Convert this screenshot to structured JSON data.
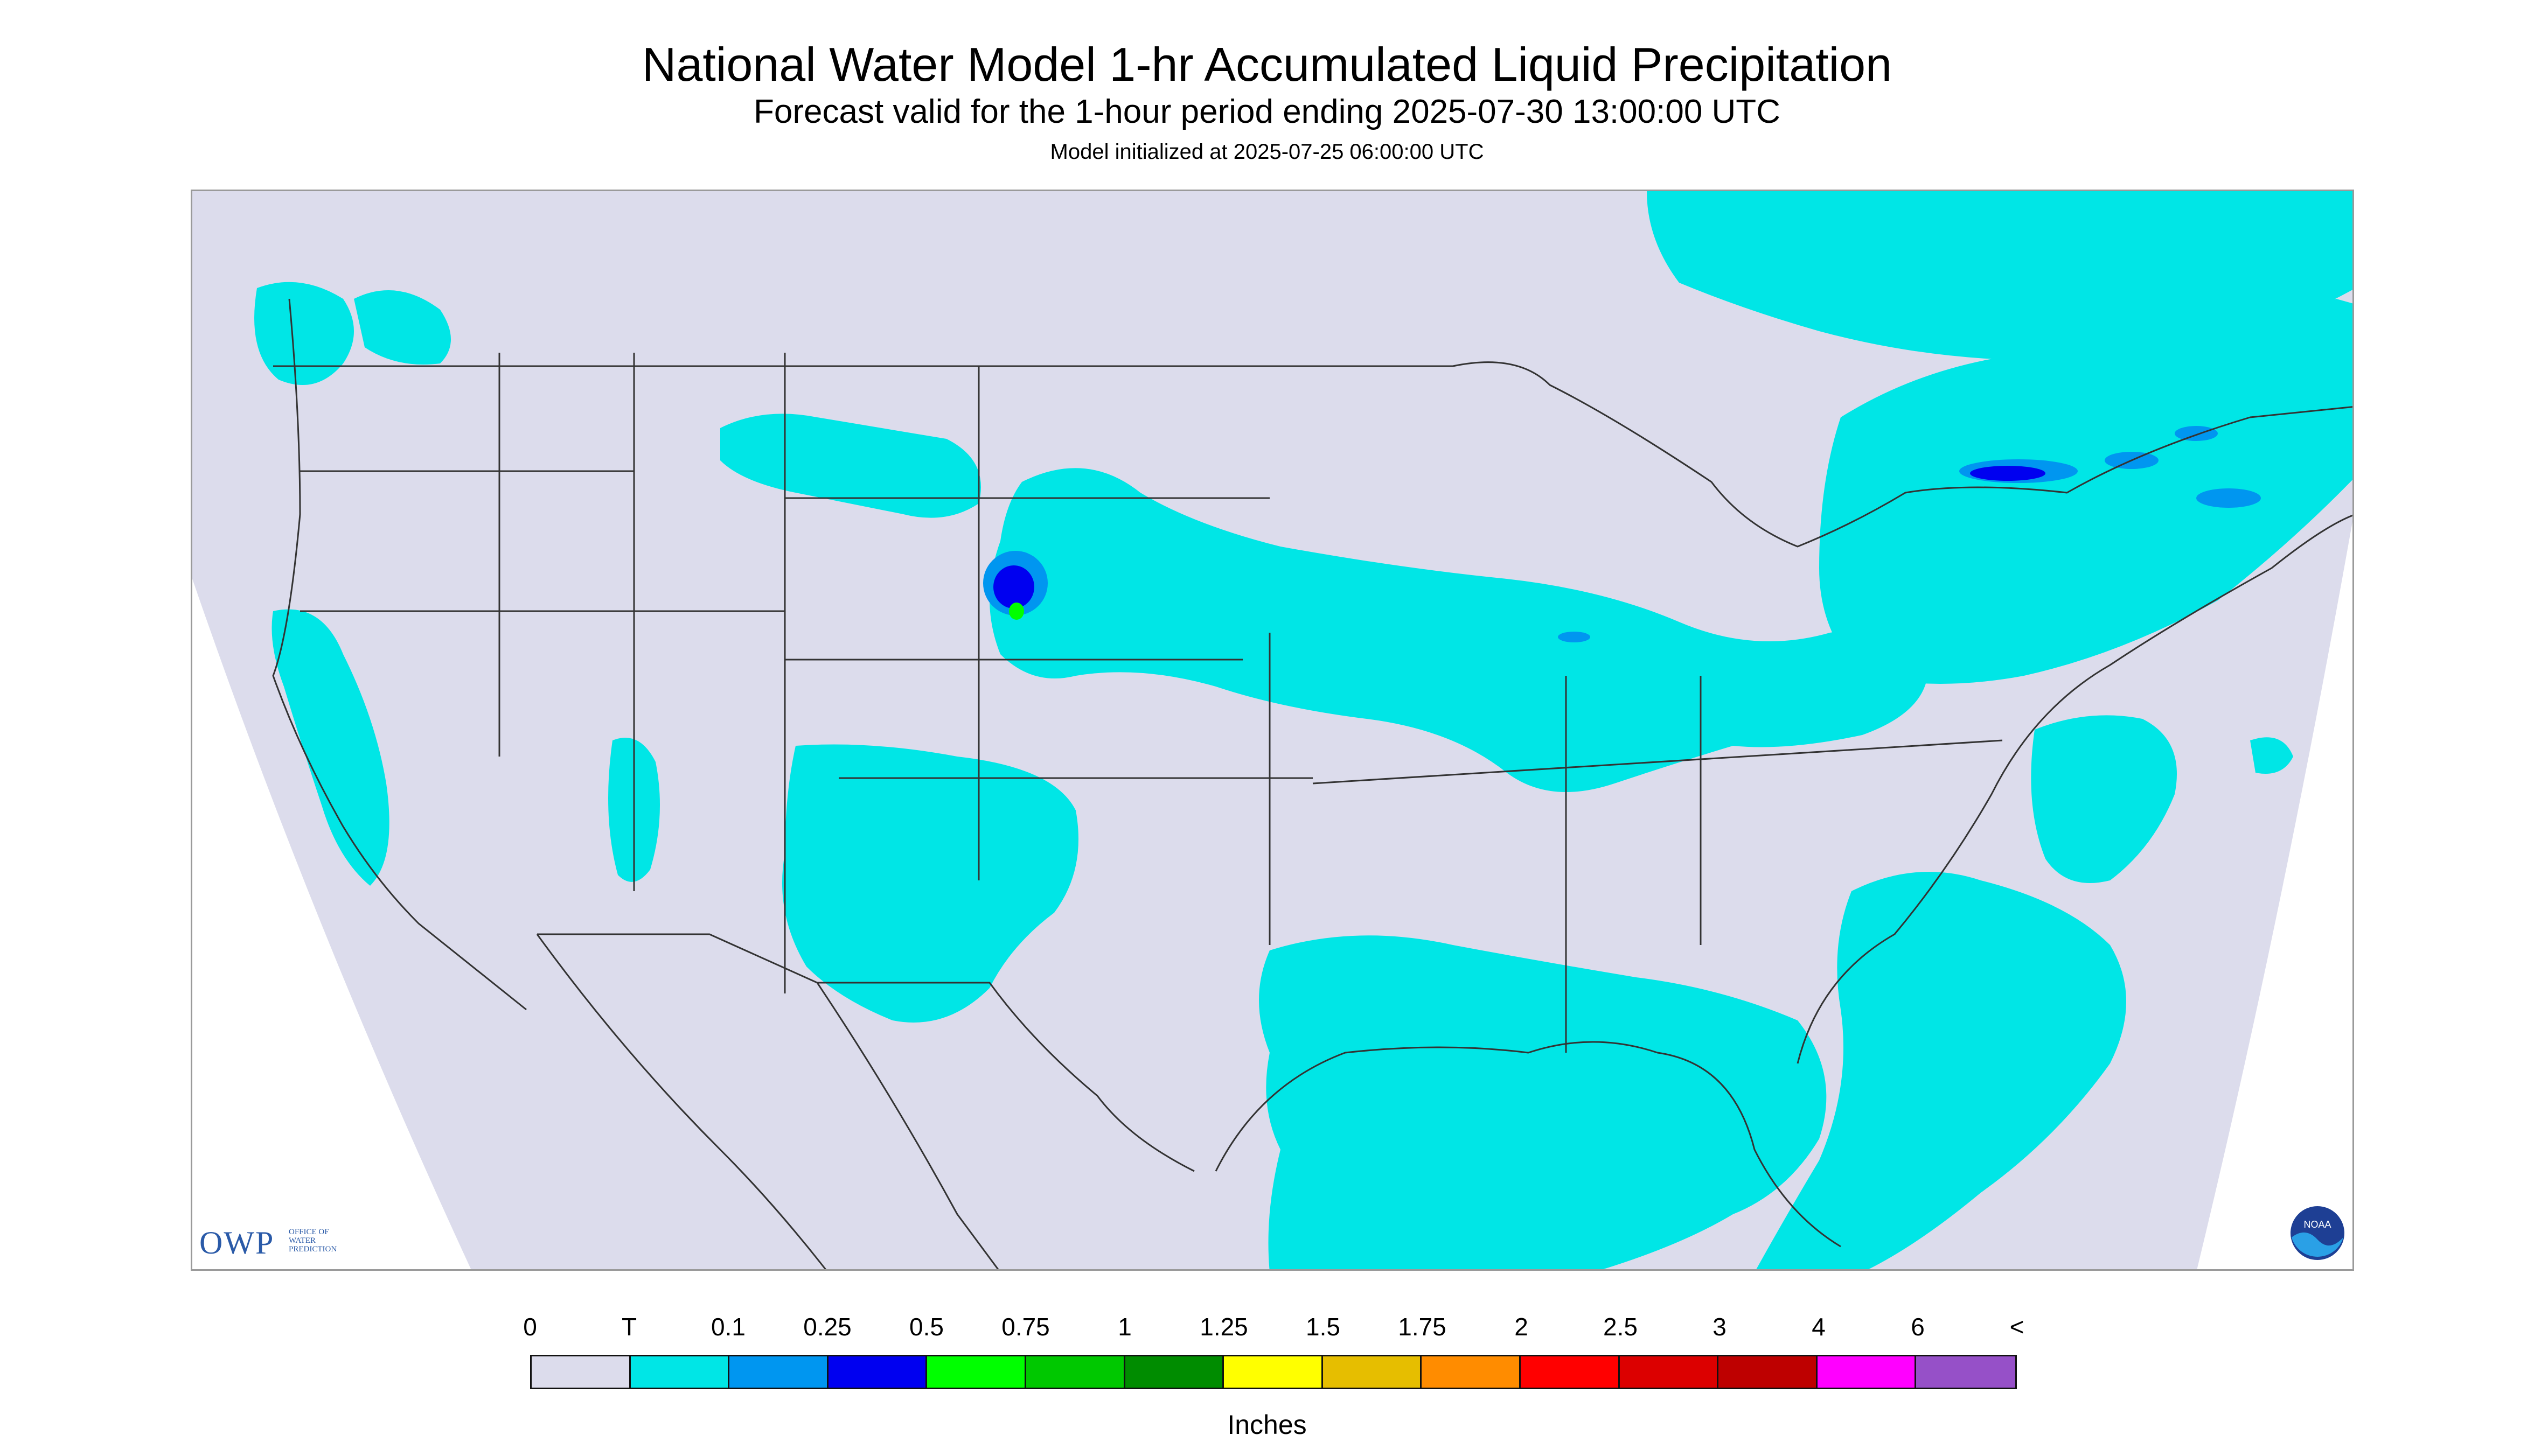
{
  "header": {
    "title": "National Water Model 1-hr Accumulated Liquid Precipitation",
    "subtitle": "Forecast valid for the 1-hour period ending 2025-07-30 13:00:00 UTC",
    "init": "Model initialized at 2025-07-25 06:00:00 UTC"
  },
  "branding": {
    "owp_big": "OWP",
    "owp_small": "OFFICE OF WATER PREDICTION",
    "noaa": "NOAA"
  },
  "legend": {
    "labels": [
      "0",
      "T",
      "0.1",
      "0.25",
      "0.5",
      "0.75",
      "1",
      "1.25",
      "1.5",
      "1.75",
      "2",
      "2.5",
      "3",
      "4",
      "6",
      "<"
    ],
    "colors": [
      "#dcdcec",
      "#00e6e6",
      "#0096f0",
      "#0000f0",
      "#00ff00",
      "#00c800",
      "#008c00",
      "#ffff00",
      "#e6be00",
      "#ff8c00",
      "#ff0000",
      "#dc0000",
      "#be0000",
      "#ff00ff",
      "#9650c8"
    ],
    "units": "Inches"
  },
  "colors": {
    "no_precip": "#dcdcec",
    "trace": "#00e6e6",
    "light": "#0096f0",
    "heavier": "#0000f0",
    "green": "#00ff00",
    "border_lines": "#333333"
  }
}
